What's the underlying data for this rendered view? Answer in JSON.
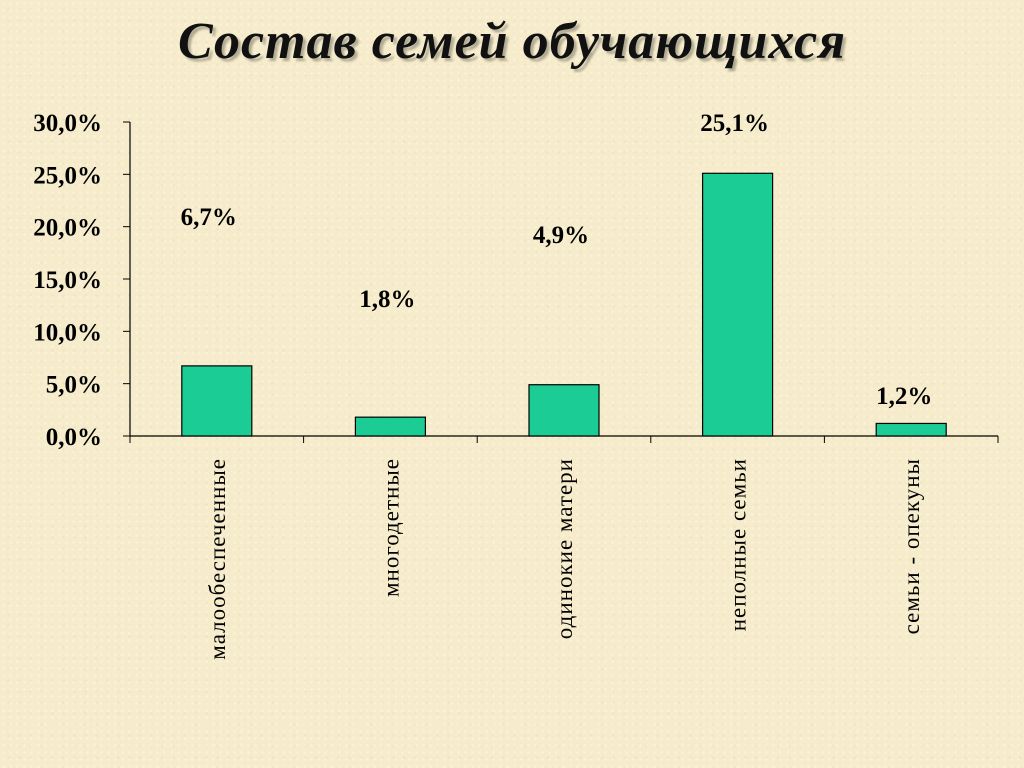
{
  "title": "Состав семей обучающихся",
  "colors": {
    "bar": "#1ccc95",
    "bar_stroke": "#000000",
    "axis": "#000000",
    "background": "#f6eccb"
  },
  "chart_data": {
    "type": "bar",
    "title": "Состав семей обучающихся",
    "categories": [
      "малообеспеченные",
      "многодетные",
      "одинокие матери",
      "неполные семьи",
      "семьи - опекуны"
    ],
    "values": [
      6.7,
      1.8,
      4.9,
      25.1,
      1.2
    ],
    "data_labels": [
      "6,7%",
      "1,8%",
      "4,9%",
      "25,1%",
      "1,2%"
    ],
    "y_ticks": [
      0,
      5,
      10,
      15,
      20,
      25,
      30
    ],
    "y_tick_labels": [
      "0,0%",
      "5,0%",
      "10,0%",
      "15,0%",
      "20,0%",
      "25,0%",
      "30,0%"
    ],
    "ylim": [
      0,
      30
    ],
    "xlabel": "",
    "ylabel": "",
    "grid": false,
    "legend": "none"
  }
}
